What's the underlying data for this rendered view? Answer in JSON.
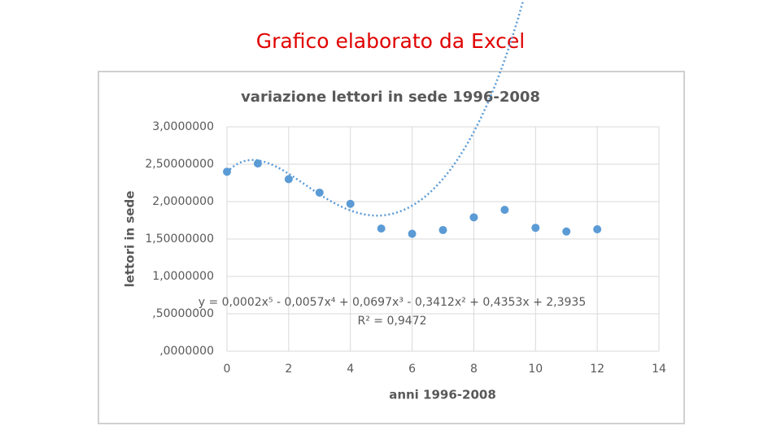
{
  "page_title": "Grafico elaborato da Excel",
  "chart_data": {
    "type": "scatter",
    "title": "variazione lettori in sede 1996-2008",
    "x_label": "anni 1996-2008",
    "y_label": "lettori in sede",
    "series": [
      {
        "name": "lettori in sede",
        "color": "#5b9bd5",
        "x": [
          0,
          1,
          2,
          3,
          4,
          5,
          6,
          7,
          8,
          9,
          10,
          11,
          12
        ],
        "values": [
          2.4,
          2.51,
          2.3,
          2.12,
          1.97,
          1.64,
          1.57,
          1.62,
          1.79,
          1.89,
          1.65,
          1.6,
          1.63
        ]
      }
    ],
    "trendline_equation": "y = 0,0002x⁵ - 0,0057x⁴ + 0,0697x³ - 0,3412x² + 0,4353x + 2,3935",
    "trendline_r2": "R² = 0,9472",
    "xlim": [
      0,
      14
    ],
    "xticks": [
      0,
      2,
      4,
      6,
      8,
      10,
      12,
      14
    ],
    "ylim": [
      0,
      3
    ],
    "yticks": [
      {
        "value": 0,
        "label": ",0000000"
      },
      {
        "value": 0.5,
        "label": ",50000000"
      },
      {
        "value": 1,
        "label": "1,0000000"
      },
      {
        "value": 1.5,
        "label": "1,50000000"
      },
      {
        "value": 2,
        "label": "2,0000000"
      },
      {
        "value": 2.5,
        "label": "2,50000000"
      },
      {
        "value": 3,
        "label": "3,0000000"
      }
    ],
    "grid": true
  }
}
